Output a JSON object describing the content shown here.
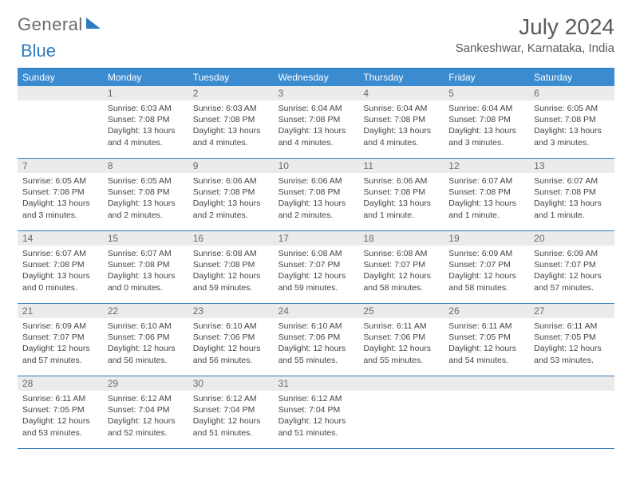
{
  "brand": {
    "part1": "General",
    "part2": "Blue"
  },
  "title": "July 2024",
  "location": "Sankeshwar, Karnataka, India",
  "colors": {
    "header_bg": "#3b8bd0",
    "border": "#2e7cc0",
    "daynum_bg": "#ebebeb",
    "text": "#444444",
    "title_text": "#5a5a5a"
  },
  "weekdays": [
    "Sunday",
    "Monday",
    "Tuesday",
    "Wednesday",
    "Thursday",
    "Friday",
    "Saturday"
  ],
  "weeks": [
    [
      null,
      {
        "n": "1",
        "sr": "6:03 AM",
        "ss": "7:08 PM",
        "dl": "13 hours and 4 minutes."
      },
      {
        "n": "2",
        "sr": "6:03 AM",
        "ss": "7:08 PM",
        "dl": "13 hours and 4 minutes."
      },
      {
        "n": "3",
        "sr": "6:04 AM",
        "ss": "7:08 PM",
        "dl": "13 hours and 4 minutes."
      },
      {
        "n": "4",
        "sr": "6:04 AM",
        "ss": "7:08 PM",
        "dl": "13 hours and 4 minutes."
      },
      {
        "n": "5",
        "sr": "6:04 AM",
        "ss": "7:08 PM",
        "dl": "13 hours and 3 minutes."
      },
      {
        "n": "6",
        "sr": "6:05 AM",
        "ss": "7:08 PM",
        "dl": "13 hours and 3 minutes."
      }
    ],
    [
      {
        "n": "7",
        "sr": "6:05 AM",
        "ss": "7:08 PM",
        "dl": "13 hours and 3 minutes."
      },
      {
        "n": "8",
        "sr": "6:05 AM",
        "ss": "7:08 PM",
        "dl": "13 hours and 2 minutes."
      },
      {
        "n": "9",
        "sr": "6:06 AM",
        "ss": "7:08 PM",
        "dl": "13 hours and 2 minutes."
      },
      {
        "n": "10",
        "sr": "6:06 AM",
        "ss": "7:08 PM",
        "dl": "13 hours and 2 minutes."
      },
      {
        "n": "11",
        "sr": "6:06 AM",
        "ss": "7:08 PM",
        "dl": "13 hours and 1 minute."
      },
      {
        "n": "12",
        "sr": "6:07 AM",
        "ss": "7:08 PM",
        "dl": "13 hours and 1 minute."
      },
      {
        "n": "13",
        "sr": "6:07 AM",
        "ss": "7:08 PM",
        "dl": "13 hours and 1 minute."
      }
    ],
    [
      {
        "n": "14",
        "sr": "6:07 AM",
        "ss": "7:08 PM",
        "dl": "13 hours and 0 minutes."
      },
      {
        "n": "15",
        "sr": "6:07 AM",
        "ss": "7:08 PM",
        "dl": "13 hours and 0 minutes."
      },
      {
        "n": "16",
        "sr": "6:08 AM",
        "ss": "7:08 PM",
        "dl": "12 hours and 59 minutes."
      },
      {
        "n": "17",
        "sr": "6:08 AM",
        "ss": "7:07 PM",
        "dl": "12 hours and 59 minutes."
      },
      {
        "n": "18",
        "sr": "6:08 AM",
        "ss": "7:07 PM",
        "dl": "12 hours and 58 minutes."
      },
      {
        "n": "19",
        "sr": "6:09 AM",
        "ss": "7:07 PM",
        "dl": "12 hours and 58 minutes."
      },
      {
        "n": "20",
        "sr": "6:09 AM",
        "ss": "7:07 PM",
        "dl": "12 hours and 57 minutes."
      }
    ],
    [
      {
        "n": "21",
        "sr": "6:09 AM",
        "ss": "7:07 PM",
        "dl": "12 hours and 57 minutes."
      },
      {
        "n": "22",
        "sr": "6:10 AM",
        "ss": "7:06 PM",
        "dl": "12 hours and 56 minutes."
      },
      {
        "n": "23",
        "sr": "6:10 AM",
        "ss": "7:06 PM",
        "dl": "12 hours and 56 minutes."
      },
      {
        "n": "24",
        "sr": "6:10 AM",
        "ss": "7:06 PM",
        "dl": "12 hours and 55 minutes."
      },
      {
        "n": "25",
        "sr": "6:11 AM",
        "ss": "7:06 PM",
        "dl": "12 hours and 55 minutes."
      },
      {
        "n": "26",
        "sr": "6:11 AM",
        "ss": "7:05 PM",
        "dl": "12 hours and 54 minutes."
      },
      {
        "n": "27",
        "sr": "6:11 AM",
        "ss": "7:05 PM",
        "dl": "12 hours and 53 minutes."
      }
    ],
    [
      {
        "n": "28",
        "sr": "6:11 AM",
        "ss": "7:05 PM",
        "dl": "12 hours and 53 minutes."
      },
      {
        "n": "29",
        "sr": "6:12 AM",
        "ss": "7:04 PM",
        "dl": "12 hours and 52 minutes."
      },
      {
        "n": "30",
        "sr": "6:12 AM",
        "ss": "7:04 PM",
        "dl": "12 hours and 51 minutes."
      },
      {
        "n": "31",
        "sr": "6:12 AM",
        "ss": "7:04 PM",
        "dl": "12 hours and 51 minutes."
      },
      null,
      null,
      null
    ]
  ],
  "labels": {
    "sunrise": "Sunrise:",
    "sunset": "Sunset:",
    "daylight": "Daylight:"
  }
}
